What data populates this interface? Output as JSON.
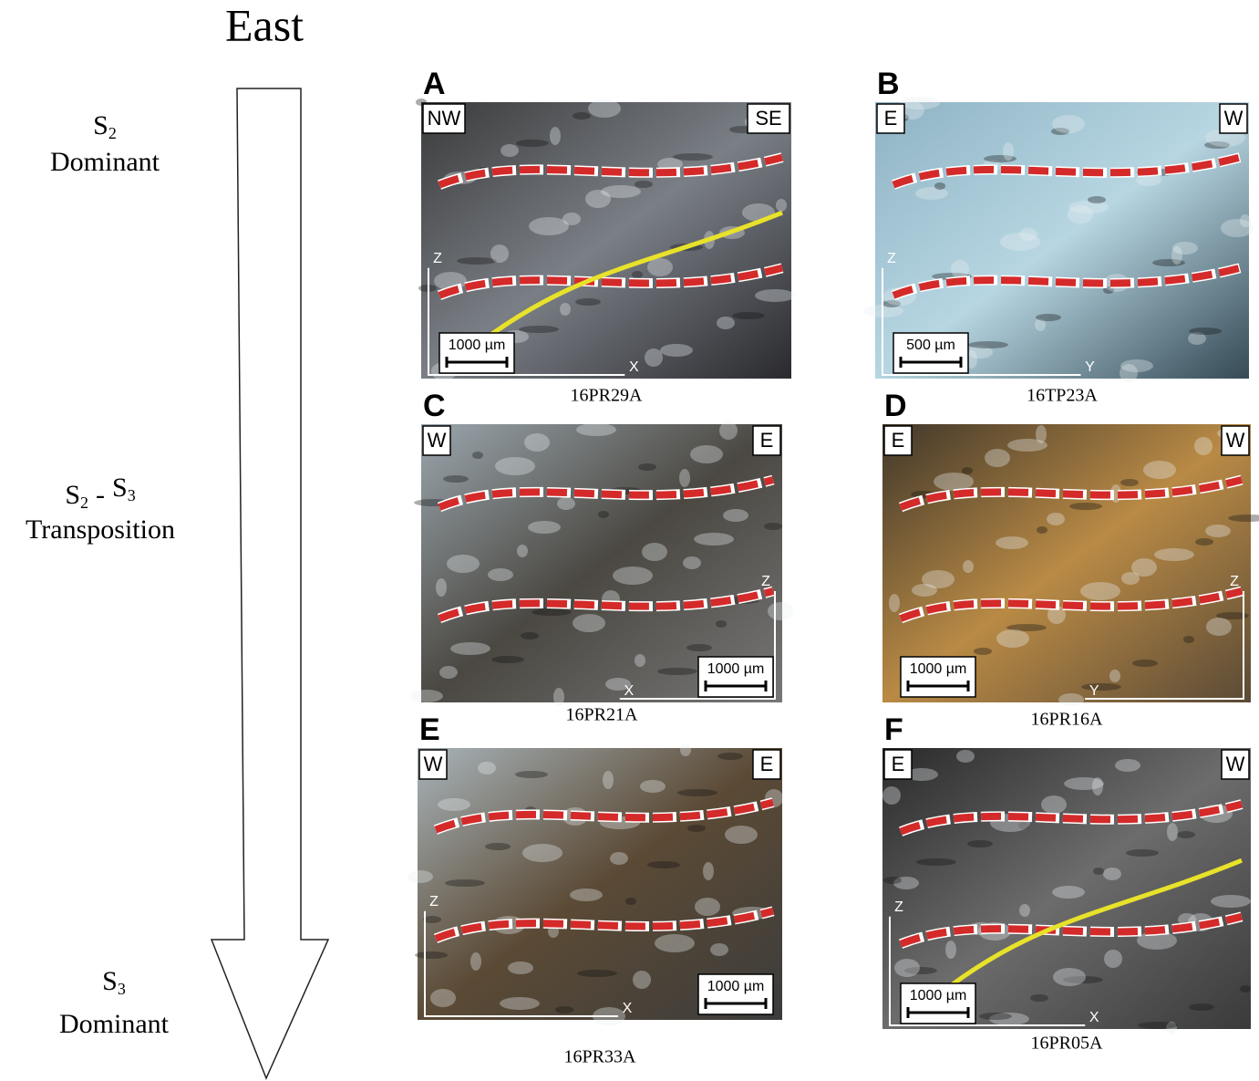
{
  "title": "East",
  "stages": [
    {
      "terms": [
        {
          "s": "S",
          "sub": "2"
        }
      ],
      "label": "Dominant"
    },
    {
      "terms": [
        {
          "s": "S",
          "sub": "2"
        },
        {
          "s": "S",
          "sub": "3"
        }
      ],
      "joiner": "-",
      "label": "Transposition"
    },
    {
      "terms": [
        {
          "s": "S",
          "sub": "3"
        }
      ],
      "label": "Dominant"
    }
  ],
  "panels": [
    {
      "letter": "A",
      "left": "NW",
      "right": "SE",
      "scale": "1000 µm",
      "axis_v": "Z",
      "axis_h": "X",
      "sample": "16PR29A"
    },
    {
      "letter": "B",
      "left": "E",
      "right": "W",
      "scale": "500 µm",
      "axis_v": "Z",
      "axis_h": "Y",
      "sample": "16TP23A"
    },
    {
      "letter": "C",
      "left": "W",
      "right": "E",
      "scale": "1000 µm",
      "axis_v": "Z",
      "axis_h": "X",
      "sample": "16PR21A"
    },
    {
      "letter": "D",
      "left": "E",
      "right": "W",
      "scale": "1000 µm",
      "axis_v": "Z",
      "axis_h": "Y",
      "sample": "16PR16A"
    },
    {
      "letter": "E",
      "left": "W",
      "right": "E",
      "scale": "1000 µm",
      "axis_v": "Z",
      "axis_h": "X",
      "sample": "16PR33A"
    },
    {
      "letter": "F",
      "left": "E",
      "right": "W",
      "scale": "1000 µm",
      "axis_v": "Z",
      "axis_h": "X",
      "sample": "16PR05A"
    }
  ]
}
